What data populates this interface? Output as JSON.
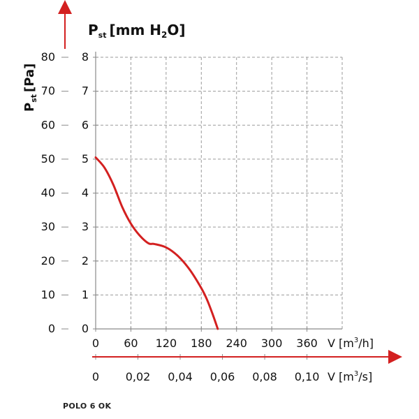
{
  "colors": {
    "curve": "#d32020",
    "arrow": "#d32020",
    "grid": "#9a9a9a",
    "axis": "#8a8a8a",
    "text": "#111111"
  },
  "labels": {
    "pa_axis_main": "P",
    "pa_axis_sub": "st",
    "pa_axis_unit": "[Pa]",
    "mm_axis_main": "P",
    "mm_axis_sub": "st",
    "mm_axis_unit_pre": "[mm H",
    "mm_axis_unit_sub": "2",
    "mm_axis_unit_post": "O]",
    "m3h_axis_pre": "V [m",
    "m3h_axis_sup": "3",
    "m3h_axis_post": "/h]",
    "m3s_axis_pre": "V [m",
    "m3s_axis_sup": "3",
    "m3s_axis_post": "/s]",
    "footer": "POLO 6 OK"
  },
  "chart_data": {
    "type": "line",
    "title": "",
    "xlabel": "V [m3/h]",
    "x2label": "V [m3/s]",
    "ylabel": "Pst [mm H2O]",
    "y2label": "Pst [Pa]",
    "xlim": [
      0,
      420
    ],
    "ylim": [
      0,
      8
    ],
    "pa_lim": [
      0,
      80
    ],
    "grid": true,
    "x_ticks": [
      "0",
      "60",
      "120",
      "180",
      "240",
      "300",
      "360"
    ],
    "x2_ticks": [
      "0",
      "0,02",
      "0,04",
      "0,06",
      "0,08",
      "0,10"
    ],
    "y_ticks": [
      "0",
      "1",
      "2",
      "3",
      "4",
      "5",
      "6",
      "7",
      "8"
    ],
    "pa_ticks": [
      "0",
      "10",
      "20",
      "30",
      "40",
      "50",
      "60",
      "70",
      "80"
    ],
    "series": [
      {
        "x": [
          0,
          15,
          30,
          45,
          60,
          75,
          90,
          100,
          120,
          140,
          160,
          180,
          190,
          200,
          208
        ],
        "y": [
          5.05,
          4.75,
          4.25,
          3.6,
          3.1,
          2.75,
          2.52,
          2.5,
          2.4,
          2.15,
          1.75,
          1.2,
          0.85,
          0.4,
          0
        ]
      }
    ]
  }
}
